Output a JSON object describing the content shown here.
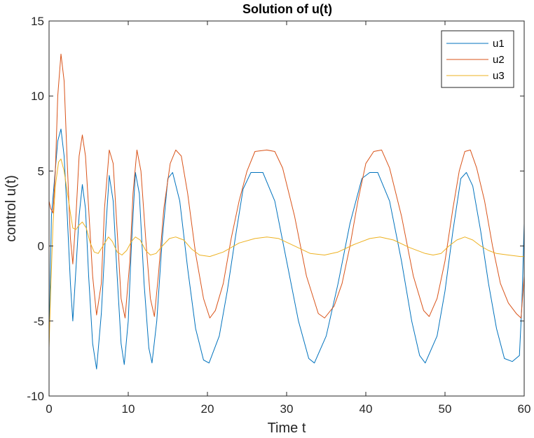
{
  "chart_data": {
    "type": "line",
    "title": "Solution of u(t)",
    "xlabel": "Time t",
    "ylabel": "control u(t)",
    "xlim": [
      0,
      60
    ],
    "ylim": [
      -10,
      15
    ],
    "xticks": [
      0,
      10,
      20,
      30,
      40,
      50,
      60
    ],
    "yticks": [
      -10,
      -5,
      0,
      5,
      10,
      15
    ],
    "grid": false,
    "legend_position": "top-right",
    "series": [
      {
        "name": "u1",
        "color": "#0072BD",
        "points": [
          [
            0,
            -6.5
          ],
          [
            0.3,
            2.0
          ],
          [
            0.7,
            4.5
          ],
          [
            1.1,
            7.0
          ],
          [
            1.5,
            7.8
          ],
          [
            1.9,
            6.0
          ],
          [
            2.3,
            2.0
          ],
          [
            2.7,
            -2.5
          ],
          [
            3.0,
            -5.0
          ],
          [
            3.4,
            -1.5
          ],
          [
            3.8,
            2.0
          ],
          [
            4.2,
            4.1
          ],
          [
            4.6,
            2.5
          ],
          [
            5.0,
            -2.0
          ],
          [
            5.5,
            -6.5
          ],
          [
            6.0,
            -8.2
          ],
          [
            6.6,
            -4.5
          ],
          [
            7.2,
            1.5
          ],
          [
            7.6,
            4.7
          ],
          [
            8.1,
            3.0
          ],
          [
            8.6,
            -2.0
          ],
          [
            9.1,
            -6.5
          ],
          [
            9.5,
            -7.9
          ],
          [
            10.0,
            -5.0
          ],
          [
            10.4,
            0.0
          ],
          [
            10.9,
            4.9
          ],
          [
            11.4,
            3.5
          ],
          [
            12.0,
            -2.5
          ],
          [
            12.6,
            -6.8
          ],
          [
            13.0,
            -7.8
          ],
          [
            13.6,
            -5.0
          ],
          [
            14.3,
            0.5
          ],
          [
            15.0,
            4.5
          ],
          [
            15.6,
            4.9
          ],
          [
            16.5,
            3.0
          ],
          [
            17.5,
            -1.5
          ],
          [
            18.5,
            -5.5
          ],
          [
            19.5,
            -7.6
          ],
          [
            20.2,
            -7.8
          ],
          [
            21.5,
            -6.0
          ],
          [
            22.5,
            -3.0
          ],
          [
            23.5,
            0.5
          ],
          [
            24.5,
            3.8
          ],
          [
            25.5,
            4.9
          ],
          [
            27.0,
            4.9
          ],
          [
            28.5,
            3.0
          ],
          [
            30.0,
            -1.0
          ],
          [
            31.5,
            -5.0
          ],
          [
            32.8,
            -7.5
          ],
          [
            33.5,
            -7.8
          ],
          [
            35.0,
            -6.0
          ],
          [
            36.5,
            -2.5
          ],
          [
            38.0,
            1.5
          ],
          [
            39.5,
            4.5
          ],
          [
            40.5,
            4.9
          ],
          [
            41.5,
            4.9
          ],
          [
            43.0,
            3.0
          ],
          [
            44.5,
            -1.0
          ],
          [
            45.8,
            -5.0
          ],
          [
            46.8,
            -7.3
          ],
          [
            47.5,
            -7.8
          ],
          [
            49.0,
            -6.0
          ],
          [
            50.0,
            -3.0
          ],
          [
            51.0,
            1.0
          ],
          [
            52.0,
            4.5
          ],
          [
            52.7,
            4.9
          ],
          [
            53.5,
            4.0
          ],
          [
            54.5,
            1.0
          ],
          [
            55.5,
            -2.5
          ],
          [
            56.5,
            -5.5
          ],
          [
            57.5,
            -7.5
          ],
          [
            58.5,
            -7.7
          ],
          [
            59.4,
            -7.3
          ],
          [
            59.7,
            -4.0
          ],
          [
            60,
            1.5
          ]
        ]
      },
      {
        "name": "u2",
        "color": "#D95319",
        "points": [
          [
            0,
            3.0
          ],
          [
            0.2,
            2.5
          ],
          [
            0.5,
            2.2
          ],
          [
            0.8,
            5.0
          ],
          [
            1.1,
            10.0
          ],
          [
            1.5,
            12.8
          ],
          [
            1.9,
            11.0
          ],
          [
            2.3,
            5.5
          ],
          [
            2.7,
            0.5
          ],
          [
            3.0,
            -1.2
          ],
          [
            3.4,
            2.0
          ],
          [
            3.8,
            6.0
          ],
          [
            4.2,
            7.4
          ],
          [
            4.6,
            6.0
          ],
          [
            5.0,
            2.5
          ],
          [
            5.5,
            -2.0
          ],
          [
            6.0,
            -4.6
          ],
          [
            6.6,
            -2.5
          ],
          [
            7.0,
            2.5
          ],
          [
            7.6,
            6.4
          ],
          [
            8.1,
            5.5
          ],
          [
            8.6,
            1.0
          ],
          [
            9.1,
            -3.5
          ],
          [
            9.6,
            -4.8
          ],
          [
            10.2,
            -1.0
          ],
          [
            10.6,
            3.5
          ],
          [
            11.1,
            6.4
          ],
          [
            11.6,
            5.0
          ],
          [
            12.2,
            0.5
          ],
          [
            12.8,
            -3.5
          ],
          [
            13.3,
            -4.7
          ],
          [
            13.8,
            -2.0
          ],
          [
            14.5,
            2.5
          ],
          [
            15.3,
            5.5
          ],
          [
            16.0,
            6.4
          ],
          [
            16.7,
            6.0
          ],
          [
            17.5,
            3.5
          ],
          [
            18.5,
            -0.5
          ],
          [
            19.5,
            -3.5
          ],
          [
            20.3,
            -4.8
          ],
          [
            21.0,
            -4.3
          ],
          [
            22.0,
            -2.5
          ],
          [
            23.0,
            0.5
          ],
          [
            24.0,
            3.0
          ],
          [
            25.0,
            5.0
          ],
          [
            26.0,
            6.3
          ],
          [
            27.5,
            6.4
          ],
          [
            28.5,
            6.3
          ],
          [
            29.5,
            5.2
          ],
          [
            31.0,
            2.0
          ],
          [
            32.5,
            -2.0
          ],
          [
            34.0,
            -4.5
          ],
          [
            34.8,
            -4.8
          ],
          [
            36.0,
            -4.0
          ],
          [
            37.0,
            -2.5
          ],
          [
            38.0,
            0.0
          ],
          [
            39.0,
            3.0
          ],
          [
            40.0,
            5.5
          ],
          [
            41.0,
            6.3
          ],
          [
            42.0,
            6.4
          ],
          [
            43.0,
            5.2
          ],
          [
            44.5,
            2.0
          ],
          [
            46.0,
            -2.0
          ],
          [
            47.3,
            -4.3
          ],
          [
            48.0,
            -4.7
          ],
          [
            49.0,
            -3.5
          ],
          [
            50.0,
            -1.0
          ],
          [
            51.0,
            2.5
          ],
          [
            51.8,
            5.0
          ],
          [
            52.5,
            6.3
          ],
          [
            53.2,
            6.4
          ],
          [
            54.0,
            5.2
          ],
          [
            55.0,
            3.0
          ],
          [
            56.0,
            0.0
          ],
          [
            57.0,
            -2.5
          ],
          [
            58.0,
            -3.8
          ],
          [
            59.0,
            -4.5
          ],
          [
            59.6,
            -4.8
          ],
          [
            60,
            -2.0
          ]
        ]
      },
      {
        "name": "u3",
        "color": "#EDB120",
        "points": [
          [
            0,
            -6.8
          ],
          [
            0.2,
            -3.0
          ],
          [
            0.5,
            1.5
          ],
          [
            0.8,
            4.0
          ],
          [
            1.2,
            5.6
          ],
          [
            1.5,
            5.8
          ],
          [
            1.9,
            5.0
          ],
          [
            2.3,
            3.6
          ],
          [
            2.7,
            2.2
          ],
          [
            3.0,
            1.2
          ],
          [
            3.4,
            1.1
          ],
          [
            3.8,
            1.4
          ],
          [
            4.2,
            1.6
          ],
          [
            4.7,
            1.2
          ],
          [
            5.2,
            0.2
          ],
          [
            5.7,
            -0.4
          ],
          [
            6.2,
            -0.5
          ],
          [
            6.8,
            0.0
          ],
          [
            7.5,
            0.6
          ],
          [
            8.0,
            0.3
          ],
          [
            8.6,
            -0.4
          ],
          [
            9.2,
            -0.6
          ],
          [
            9.8,
            -0.3
          ],
          [
            10.4,
            0.3
          ],
          [
            10.9,
            0.6
          ],
          [
            11.5,
            0.4
          ],
          [
            12.2,
            -0.3
          ],
          [
            12.8,
            -0.6
          ],
          [
            13.5,
            -0.5
          ],
          [
            14.3,
            0.0
          ],
          [
            15.2,
            0.5
          ],
          [
            16.0,
            0.6
          ],
          [
            17.0,
            0.4
          ],
          [
            18.0,
            -0.2
          ],
          [
            19.0,
            -0.6
          ],
          [
            20.3,
            -0.7
          ],
          [
            22.0,
            -0.4
          ],
          [
            24.0,
            0.2
          ],
          [
            26.0,
            0.5
          ],
          [
            27.5,
            0.6
          ],
          [
            29.0,
            0.5
          ],
          [
            31.0,
            0.0
          ],
          [
            33.0,
            -0.5
          ],
          [
            34.8,
            -0.6
          ],
          [
            36.5,
            -0.4
          ],
          [
            38.5,
            0.1
          ],
          [
            40.5,
            0.5
          ],
          [
            41.8,
            0.6
          ],
          [
            43.5,
            0.4
          ],
          [
            45.5,
            -0.1
          ],
          [
            47.5,
            -0.5
          ],
          [
            48.5,
            -0.6
          ],
          [
            49.5,
            -0.5
          ],
          [
            50.5,
            0.0
          ],
          [
            51.5,
            0.4
          ],
          [
            52.5,
            0.6
          ],
          [
            53.5,
            0.4
          ],
          [
            54.5,
            0.0
          ],
          [
            55.5,
            -0.3
          ],
          [
            56.5,
            -0.5
          ],
          [
            58.0,
            -0.6
          ],
          [
            59.5,
            -0.7
          ],
          [
            60,
            -0.7
          ]
        ]
      }
    ]
  }
}
